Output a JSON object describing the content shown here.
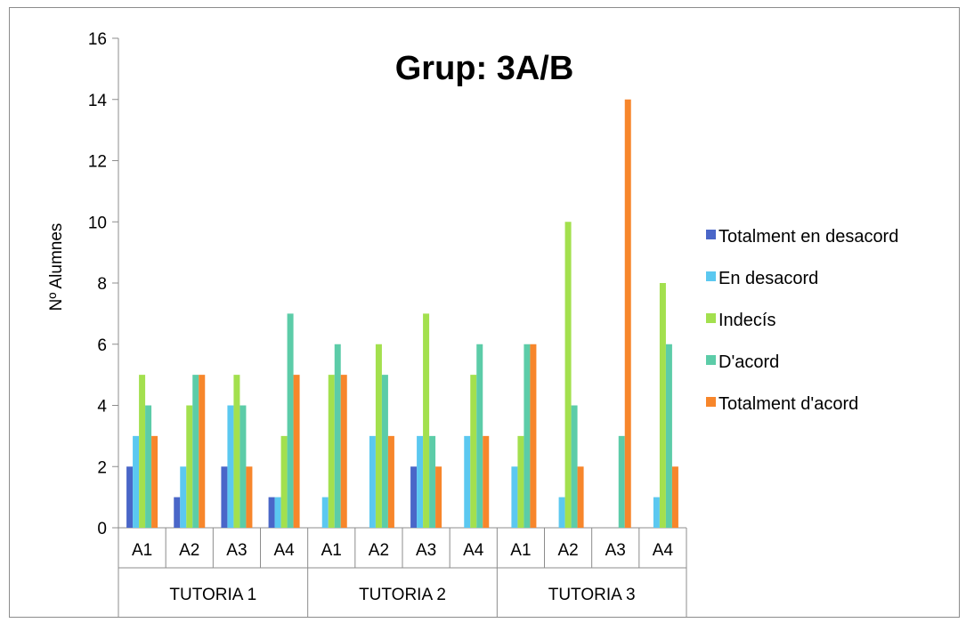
{
  "chart_data": {
    "type": "bar",
    "title": "Grup: 3A/B",
    "xlabel": "",
    "ylabel": "Nº Alumnes",
    "ylim": [
      0,
      16
    ],
    "yticks": [
      0,
      2,
      4,
      6,
      8,
      10,
      12,
      14,
      16
    ],
    "grid": false,
    "legend_position": "right",
    "groups": [
      {
        "label": "TUTORIA 1",
        "categories": [
          "A1",
          "A2",
          "A3",
          "A4"
        ]
      },
      {
        "label": "TUTORIA 2",
        "categories": [
          "A1",
          "A2",
          "A3",
          "A4"
        ]
      },
      {
        "label": "TUTORIA 3",
        "categories": [
          "A1",
          "A2",
          "A3",
          "A4"
        ]
      }
    ],
    "series": [
      {
        "name": "Totalment en desacord",
        "color": "#4A66C8",
        "values": [
          2,
          1,
          2,
          1,
          0,
          0,
          2,
          0,
          0,
          0,
          0,
          0
        ]
      },
      {
        "name": "En desacord",
        "color": "#5BC8F0",
        "values": [
          3,
          2,
          4,
          1,
          1,
          3,
          3,
          3,
          2,
          1,
          0,
          1
        ]
      },
      {
        "name": "Indecís",
        "color": "#A3E04E",
        "values": [
          5,
          4,
          5,
          3,
          5,
          6,
          7,
          5,
          3,
          10,
          0,
          8
        ]
      },
      {
        "name": "D'acord",
        "color": "#5CCCA8",
        "values": [
          4,
          5,
          4,
          7,
          6,
          5,
          3,
          6,
          6,
          4,
          3,
          6
        ]
      },
      {
        "name": "Totalment d'acord",
        "color": "#F7862B",
        "values": [
          3,
          5,
          2,
          5,
          5,
          3,
          2,
          3,
          6,
          2,
          14,
          2
        ]
      }
    ]
  }
}
